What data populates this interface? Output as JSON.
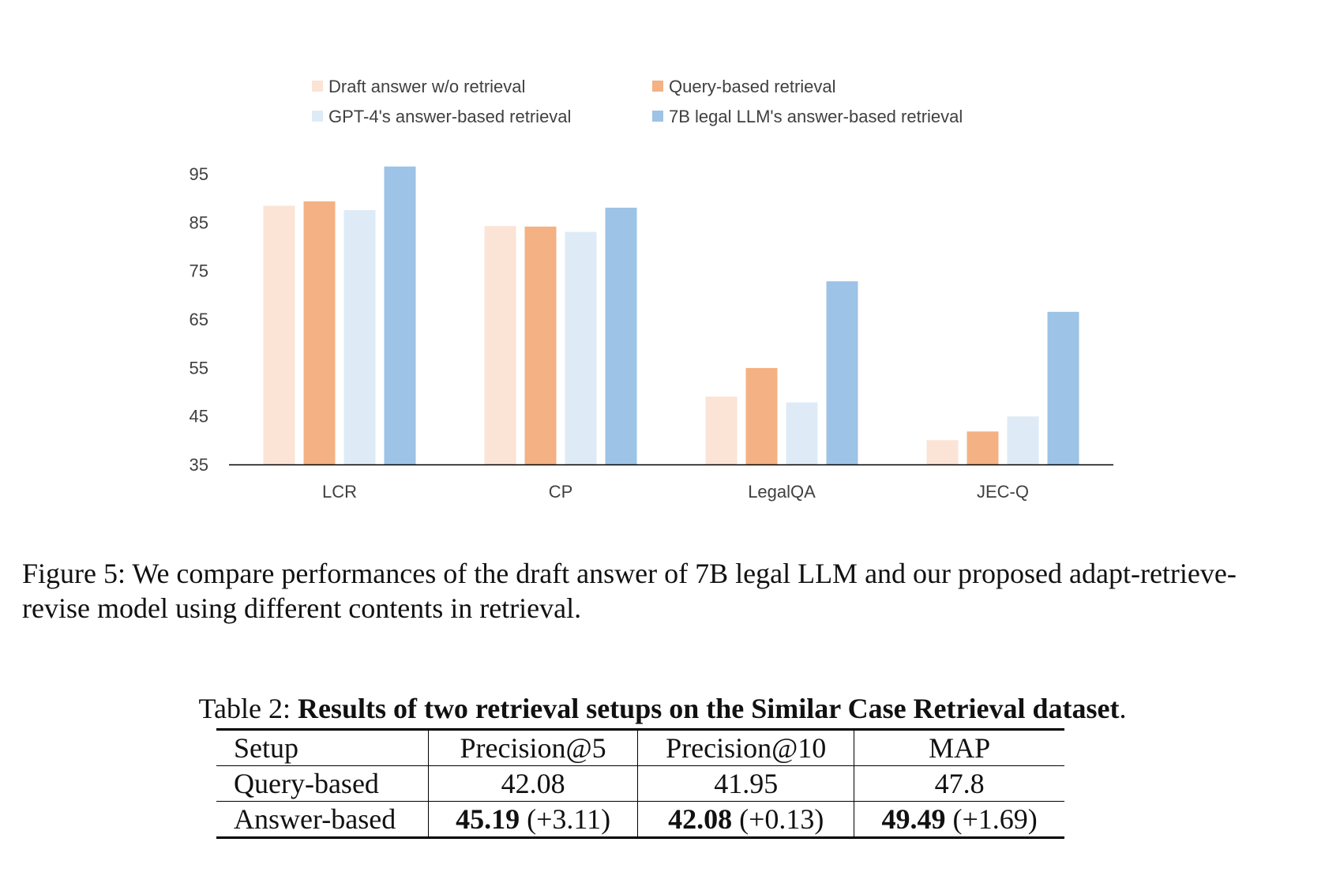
{
  "chart_data": {
    "type": "bar",
    "categories": [
      "LCR",
      "CP",
      "LegalQA",
      "JEC-Q"
    ],
    "series": [
      {
        "name": "Draft answer w/o retrieval",
        "color": "#FBE3D6",
        "values": [
          88.4,
          84.2,
          49.0,
          40.0
        ]
      },
      {
        "name": "Query-based retrieval",
        "color": "#F4B183",
        "values": [
          89.3,
          84.1,
          54.9,
          41.8
        ]
      },
      {
        "name": "GPT-4's answer-based retrieval",
        "color": "#DEEBF7",
        "values": [
          87.5,
          83.0,
          47.8,
          44.9
        ]
      },
      {
        "name": "7B legal LLM's answer-based retrieval",
        "color": "#9DC3E6",
        "values": [
          96.5,
          88.0,
          72.8,
          66.5
        ]
      }
    ],
    "ylim": [
      35,
      95
    ],
    "yticks": [
      35,
      45,
      55,
      65,
      75,
      85,
      95
    ],
    "legend": "top",
    "grid": false
  },
  "caption": {
    "text": "Figure 5: We compare performances of the draft answer of 7B legal LLM and our proposed adapt-retrieve-revise model using different contents in retrieval."
  },
  "table": {
    "caption_label": "Table 2: ",
    "caption_title": "Results of two retrieval setups on the Similar Case Retrieval dataset",
    "caption_end": ".",
    "headers": [
      "Setup",
      "Precision@5",
      "Precision@10",
      "MAP"
    ],
    "rows": [
      {
        "setup": "Query-based",
        "cells": [
          {
            "value": "42.08",
            "delta": ""
          },
          {
            "value": "41.95",
            "delta": ""
          },
          {
            "value": "47.8",
            "delta": ""
          }
        ]
      },
      {
        "setup": "Answer-based",
        "cells": [
          {
            "value": "45.19",
            "delta": " (+3.11)"
          },
          {
            "value": "42.08",
            "delta": " (+0.13)"
          },
          {
            "value": "49.49",
            "delta": " (+1.69)"
          }
        ]
      }
    ]
  }
}
